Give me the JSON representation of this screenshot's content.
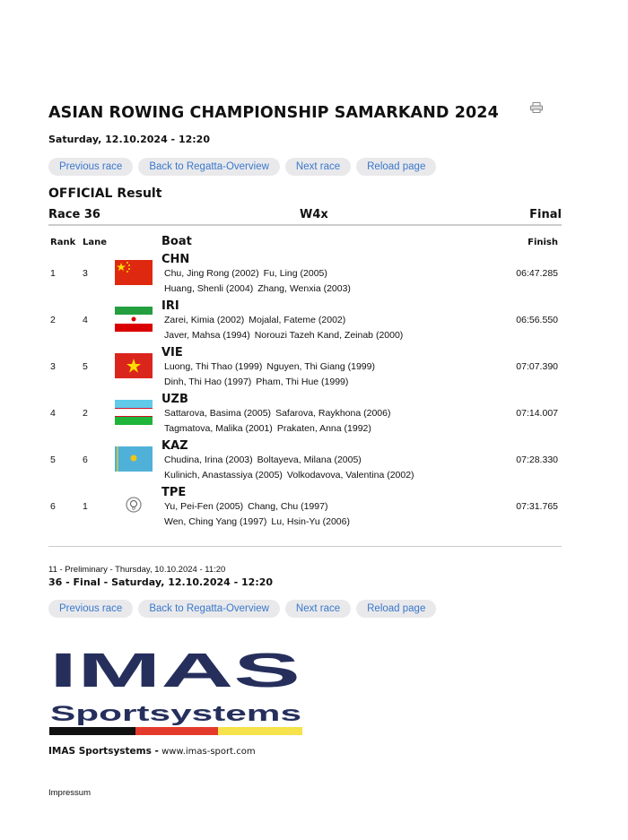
{
  "header": {
    "title": "ASIAN ROWING CHAMPIONSHIP SAMARKAND 2024",
    "date": "Saturday, 12.10.2024 - 12:20",
    "print_icon": "printer-icon"
  },
  "nav": {
    "previous": "Previous race",
    "back": "Back to Regatta-Overview",
    "next": "Next race",
    "reload": "Reload page"
  },
  "result": {
    "status": "OFFICIAL Result",
    "race": "Race 36",
    "boat_class": "W4x",
    "phase": "Final",
    "columns": {
      "rank": "Rank",
      "lane": "Lane",
      "boat": "Boat",
      "finish": "Finish"
    },
    "rows": [
      {
        "rank": "1",
        "lane": "3",
        "code": "CHN",
        "flag": "china-flag",
        "crew": [
          [
            "Chu, Jing Rong (2002)",
            "Fu, Ling (2005)"
          ],
          [
            "Huang, Shenli (2004)",
            "Zhang, Wenxia (2003)"
          ]
        ],
        "finish": "06:47.285"
      },
      {
        "rank": "2",
        "lane": "4",
        "code": "IRI",
        "flag": "iran-flag",
        "crew": [
          [
            "Zarei, Kimia (2002)",
            "Mojalal, Fateme (2002)"
          ],
          [
            "Javer, Mahsa (1994)",
            "Norouzi Tazeh Kand, Zeinab (2000)"
          ]
        ],
        "finish": "06:56.550"
      },
      {
        "rank": "3",
        "lane": "5",
        "code": "VIE",
        "flag": "vietnam-flag",
        "crew": [
          [
            "Luong, Thi Thao (1999)",
            "Nguyen, Thi Giang (1999)"
          ],
          [
            "Dinh, Thi Hao (1997)",
            "Pham, Thi Hue (1999)"
          ]
        ],
        "finish": "07:07.390"
      },
      {
        "rank": "4",
        "lane": "2",
        "code": "UZB",
        "flag": "uzbekistan-flag",
        "crew": [
          [
            "Sattarova, Basima (2005)",
            "Safarova, Raykhona (2006)"
          ],
          [
            "Tagmatova, Malika (2001)",
            "Prakaten, Anna (1992)"
          ]
        ],
        "finish": "07:14.007"
      },
      {
        "rank": "5",
        "lane": "6",
        "code": "KAZ",
        "flag": "kazakhstan-flag",
        "crew": [
          [
            "Chudina, Irina (2003)",
            "Boltayeva, Milana (2005)"
          ],
          [
            "Kulinich, Anastassiya (2005)",
            "Volkodavova, Valentina (2002)"
          ]
        ],
        "finish": "07:28.330"
      },
      {
        "rank": "6",
        "lane": "1",
        "code": "TPE",
        "flag": "chinese-taipei-olympic-flag",
        "crew": [
          [
            "Yu, Pei-Fen (2005)",
            "Chang, Chu (1997)"
          ],
          [
            "Wen, Ching Yang (1997)",
            "Lu, Hsin-Yu (2006)"
          ]
        ],
        "finish": "07:31.765"
      }
    ]
  },
  "races": {
    "preliminary": "11 - Preliminary - Thursday, 10.10.2024 - 11:20",
    "final": "36 - Final - Saturday, 12.10.2024 - 12:20"
  },
  "logo": {
    "text_top": "IMAS",
    "text_bottom": "Sportsystems",
    "color": "#262f5c"
  },
  "footer": {
    "company": "IMAS Sportsystems -",
    "url": "www.imas-sport.com",
    "impressum": "Impressum"
  }
}
